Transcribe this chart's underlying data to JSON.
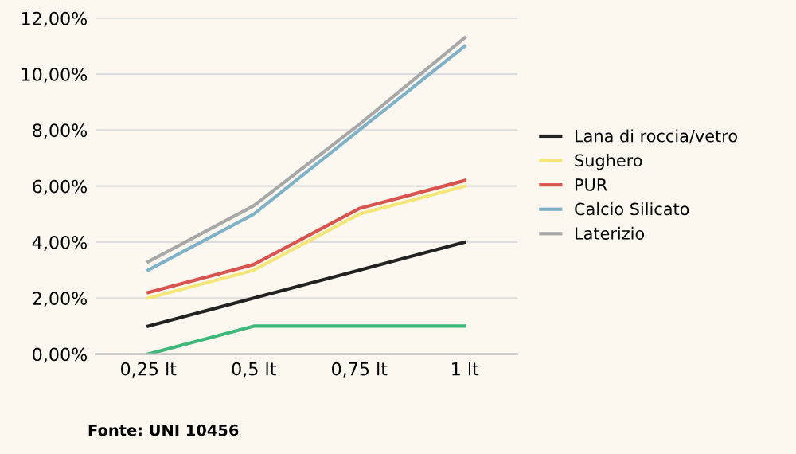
{
  "chart_data": {
    "type": "line",
    "categories": [
      "0,25 lt",
      "0,5 lt",
      "0,75 lt",
      "1 lt"
    ],
    "series": [
      {
        "color": "#3cb878",
        "values": [
          0,
          1,
          1,
          1
        ]
      },
      {
        "name": "Lana di roccia/vetro",
        "color": "#222222",
        "values": [
          1,
          2,
          3,
          4
        ]
      },
      {
        "name": "Sughero",
        "color": "#f5e67a",
        "values": [
          2,
          3,
          5,
          6
        ]
      },
      {
        "name": "PUR",
        "color": "#d9534f",
        "values": [
          2.2,
          3.2,
          5.2,
          6.2
        ]
      },
      {
        "name": "Calcio Silicato",
        "color": "#7fb2c9",
        "values": [
          3,
          5,
          8,
          11
        ]
      },
      {
        "name": "Laterizio",
        "color": "#a8a8a8",
        "values": [
          3.3,
          5.3,
          8.2,
          11.3
        ]
      }
    ],
    "ylim": [
      0,
      12
    ],
    "yticks": [
      {
        "value": 0,
        "label": "0,00%"
      },
      {
        "value": 2,
        "label": "2,00%"
      },
      {
        "value": 4,
        "label": "4,00%"
      },
      {
        "value": 6,
        "label": "6,00%"
      },
      {
        "value": 8,
        "label": "8,00%"
      },
      {
        "value": 10,
        "label": "10,00%"
      },
      {
        "value": 12,
        "label": "12,00%"
      }
    ],
    "grid": "y",
    "legend": "right",
    "marker": "none",
    "line_style": "solid",
    "annotations": [
      "Fonte: UNI 10456"
    ]
  }
}
